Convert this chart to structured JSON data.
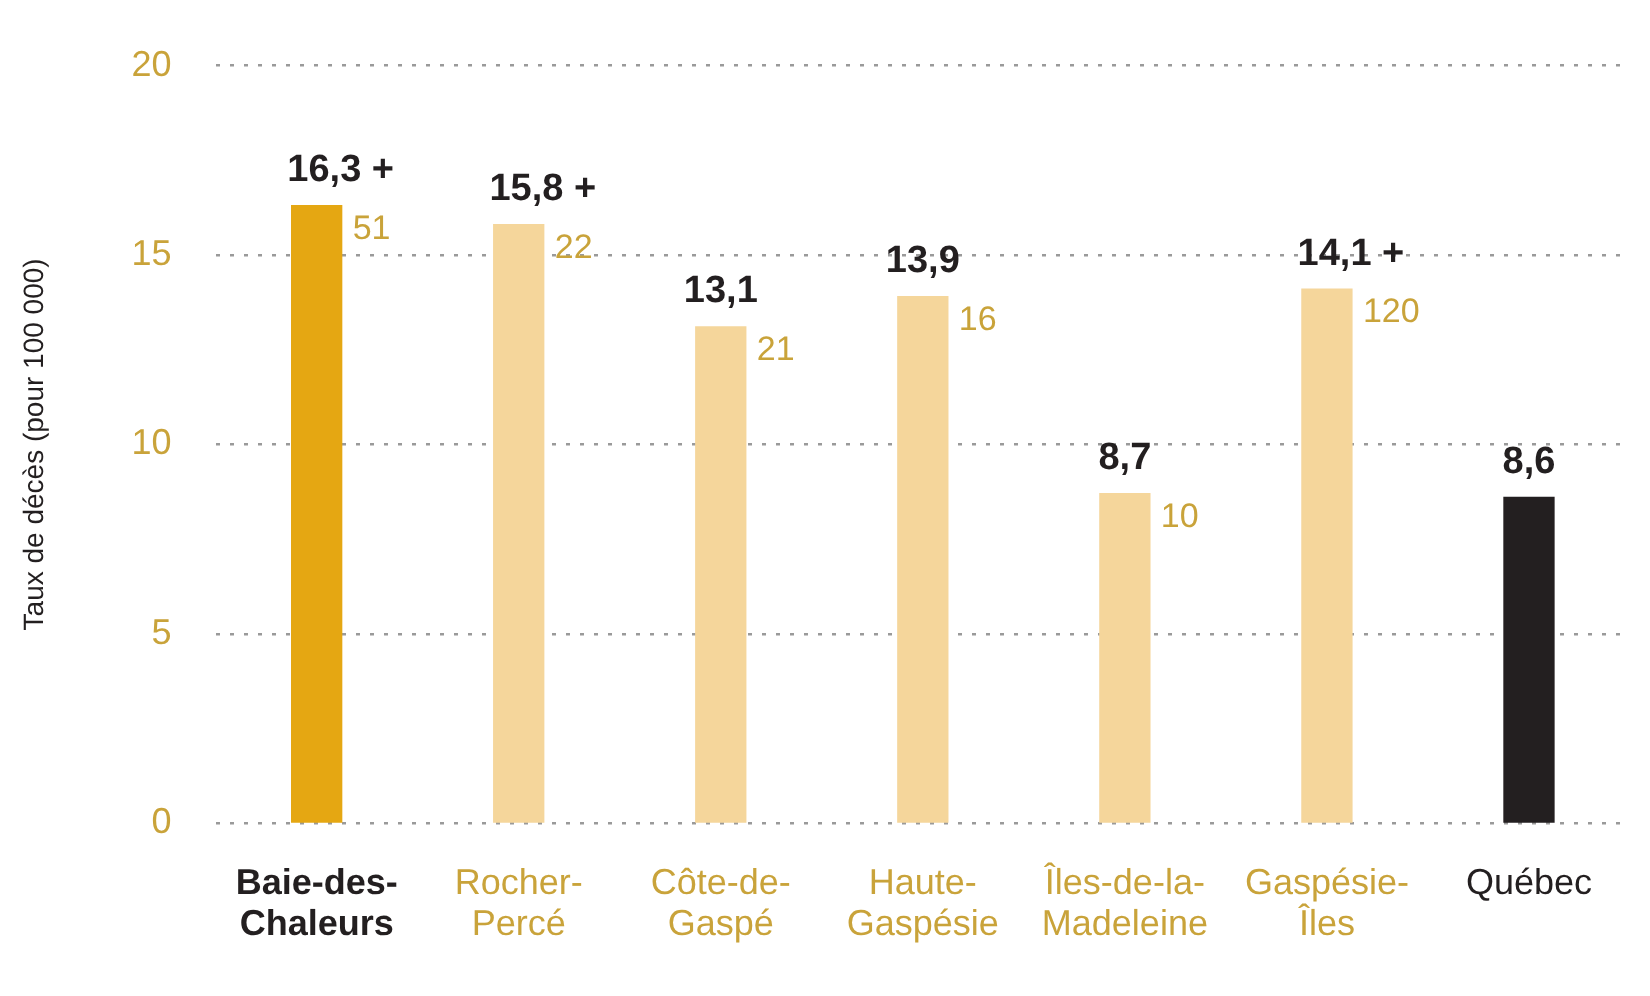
{
  "chart_data": {
    "type": "bar",
    "ylabel": "Taux de décès (pour 100 000)",
    "categories": [
      "Baie-des-Chaleurs",
      "Rocher-Percé",
      "Côte-de-Gaspé",
      "Haute-Gaspésie",
      "Îles-de-la-Madeleine",
      "Gaspésie-Îles",
      "Québec"
    ],
    "values": [
      16.3,
      15.8,
      13.1,
      13.9,
      8.7,
      14.1,
      8.6
    ],
    "colors": [
      "#e5a712",
      "#f5d69b",
      "#f5d69b",
      "#f5d69b",
      "#f5d69b",
      "#f5d69b",
      "#231f20"
    ],
    "value_labels": [
      "16,3 +",
      "15,8 +",
      "13,1",
      "13,9",
      "8,7",
      "14,1 +",
      "8,6"
    ],
    "annotations": [
      {
        "text": "51",
        "x": "Baie-des-Chaleurs",
        "y": 16.3
      },
      {
        "text": "22",
        "x": "Rocher-Percé",
        "y": 15.8
      },
      {
        "text": "21",
        "x": "Côte-de-Gaspé",
        "y": 13.1
      },
      {
        "text": "16",
        "x": "Haute-Gaspésie",
        "y": 13.9
      },
      {
        "text": "10",
        "x": "Îles-de-la-Madeleine",
        "y": 8.7
      },
      {
        "text": "120",
        "x": "Gaspésie-Îles",
        "y": 14.1
      }
    ],
    "ylim": [
      0,
      20
    ],
    "yticks": [
      0,
      5,
      10,
      15,
      20
    ],
    "grid": "y",
    "legend": false
  }
}
